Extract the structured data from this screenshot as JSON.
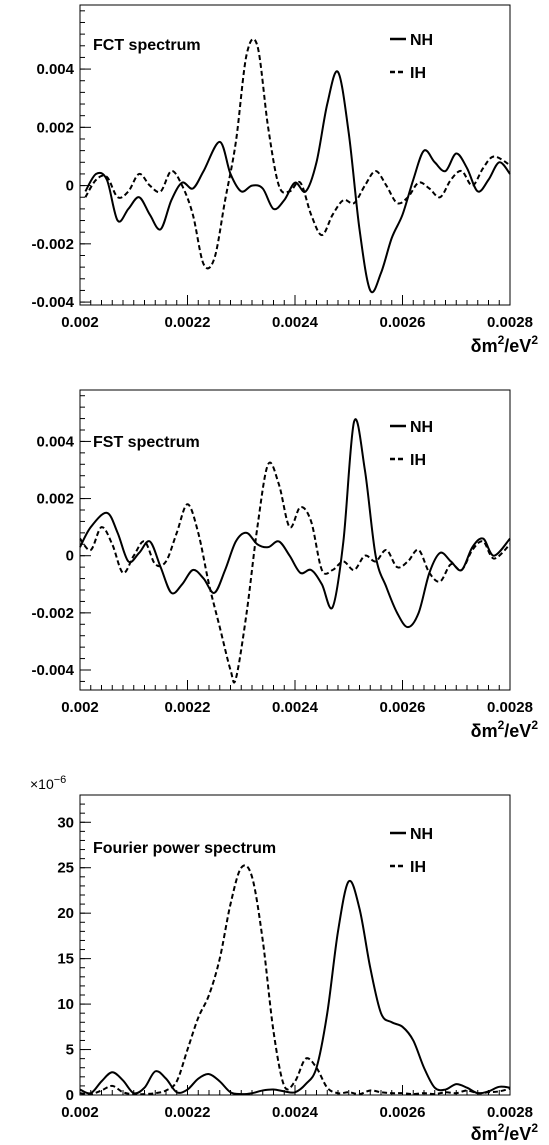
{
  "chart_data": [
    {
      "type": "line",
      "title": "FCT spectrum",
      "xlabel_base": "δm",
      "xlabel_sup1": "2",
      "xlabel_mid": "/eV",
      "xlabel_sup2": "2",
      "xlim": [
        0.002,
        0.0028
      ],
      "ylim": [
        -0.0041,
        0.0062
      ],
      "xticks": [
        "0.002",
        "0.0022",
        "0.0024",
        "0.0026",
        "0.0028"
      ],
      "yticks": [
        "-0.004",
        "-0.002",
        "0",
        "0.002",
        "0.004"
      ],
      "legend": {
        "placement": "top-right",
        "entries": [
          {
            "label": "NH",
            "style": "solid"
          },
          {
            "label": "IH",
            "style": "dashed"
          }
        ]
      },
      "series": [
        {
          "name": "NH",
          "style": "solid",
          "x": [
            0.00201,
            0.00203,
            0.00205,
            0.00207,
            0.00209,
            0.00211,
            0.00213,
            0.00215,
            0.00217,
            0.00219,
            0.00221,
            0.00223,
            0.00226,
            0.00228,
            0.0023,
            0.00232,
            0.00234,
            0.00236,
            0.00238,
            0.0024,
            0.00242,
            0.00244,
            0.00246,
            0.00248,
            0.0025,
            0.00252,
            0.00254,
            0.00256,
            0.00258,
            0.0026,
            0.00262,
            0.00264,
            0.00266,
            0.00268,
            0.0027,
            0.00272,
            0.00274,
            0.00276,
            0.00278,
            0.0028
          ],
          "y": [
            -0.0002,
            0.0004,
            0.0002,
            -0.0012,
            -0.0008,
            -0.0004,
            -0.001,
            -0.0015,
            -0.0005,
            0.0001,
            -0.0001,
            0.0005,
            0.0015,
            0.0004,
            -0.0002,
            0.0,
            -0.0001,
            -0.0008,
            -0.0005,
            0.0001,
            -0.0002,
            0.0008,
            0.0028,
            0.0039,
            0.0018,
            -0.0015,
            -0.0036,
            -0.003,
            -0.0018,
            -0.001,
            0.0002,
            0.0012,
            0.0008,
            0.0005,
            0.0011,
            0.0006,
            -0.0002,
            0.0002,
            0.0008,
            0.0004
          ]
        },
        {
          "name": "IH",
          "style": "dashed",
          "x": [
            0.00201,
            0.00203,
            0.00205,
            0.00207,
            0.00209,
            0.00211,
            0.00213,
            0.00215,
            0.00217,
            0.00219,
            0.00221,
            0.00223,
            0.00225,
            0.00227,
            0.00229,
            0.00231,
            0.00233,
            0.00235,
            0.00237,
            0.00239,
            0.00241,
            0.00243,
            0.00245,
            0.00247,
            0.00249,
            0.00251,
            0.00253,
            0.00255,
            0.00257,
            0.00259,
            0.00261,
            0.00263,
            0.00265,
            0.00267,
            0.00269,
            0.00271,
            0.00273,
            0.00275,
            0.00277,
            0.0028
          ],
          "y": [
            -0.0004,
            0.0002,
            0.0003,
            -0.0004,
            -0.0002,
            0.0004,
            0.0,
            -0.0002,
            0.0005,
            0.0,
            -0.001,
            -0.0027,
            -0.0025,
            -0.0005,
            0.0015,
            0.0045,
            0.0048,
            0.002,
            0.0,
            -0.0002,
            0.0001,
            -0.001,
            -0.0017,
            -0.001,
            -0.0005,
            -0.0006,
            0.0,
            0.0005,
            0.0,
            -0.0006,
            -0.0004,
            0.0001,
            -0.0001,
            -0.0004,
            0.0002,
            0.0005,
            0.0,
            0.0006,
            0.001,
            0.0007
          ]
        }
      ]
    },
    {
      "type": "line",
      "title": "FST spectrum",
      "xlabel_base": "δm",
      "xlabel_sup1": "2",
      "xlabel_mid": "/eV",
      "xlabel_sup2": "2",
      "xlim": [
        0.002,
        0.0028
      ],
      "ylim": [
        -0.0047,
        0.0058
      ],
      "xticks": [
        "0.002",
        "0.0022",
        "0.0024",
        "0.0026",
        "0.0028"
      ],
      "yticks": [
        "-0.004",
        "-0.002",
        "0",
        "0.002",
        "0.004"
      ],
      "legend": {
        "placement": "top-right",
        "entries": [
          {
            "label": "NH",
            "style": "solid"
          },
          {
            "label": "IH",
            "style": "dashed"
          }
        ]
      },
      "series": [
        {
          "name": "NH",
          "style": "solid",
          "x": [
            0.002,
            0.00202,
            0.00205,
            0.00207,
            0.00209,
            0.00211,
            0.00213,
            0.00215,
            0.00217,
            0.00219,
            0.00221,
            0.00223,
            0.00225,
            0.00227,
            0.00229,
            0.00231,
            0.00233,
            0.00235,
            0.00237,
            0.00239,
            0.00241,
            0.00243,
            0.00245,
            0.00247,
            0.00249,
            0.00251,
            0.00253,
            0.00255,
            0.00257,
            0.00259,
            0.00261,
            0.00263,
            0.00265,
            0.00267,
            0.00269,
            0.00271,
            0.00273,
            0.00275,
            0.00277,
            0.0028
          ],
          "y": [
            0.0003,
            0.001,
            0.0015,
            0.0008,
            -0.0002,
            0.0001,
            0.0005,
            -0.0004,
            -0.0013,
            -0.001,
            -0.0005,
            -0.0008,
            -0.0013,
            -0.0005,
            0.0005,
            0.0008,
            0.0004,
            0.0003,
            0.0005,
            0.0,
            -0.0006,
            -0.0005,
            -0.001,
            -0.0018,
            0.0005,
            0.0047,
            0.003,
            0.0,
            -0.0011,
            -0.002,
            -0.0025,
            -0.002,
            -0.0006,
            0.0001,
            -0.0002,
            -0.0005,
            0.0003,
            0.0006,
            0.0,
            0.0006
          ]
        },
        {
          "name": "IH",
          "style": "dashed",
          "x": [
            0.002,
            0.00202,
            0.00204,
            0.00206,
            0.00208,
            0.0021,
            0.00212,
            0.00214,
            0.00216,
            0.00218,
            0.0022,
            0.00222,
            0.00224,
            0.00226,
            0.00228,
            0.00229,
            0.00231,
            0.00233,
            0.00235,
            0.00237,
            0.00239,
            0.00241,
            0.00243,
            0.00245,
            0.00247,
            0.00249,
            0.00251,
            0.00253,
            0.00255,
            0.00257,
            0.00259,
            0.00261,
            0.00263,
            0.00265,
            0.00267,
            0.00269,
            0.00271,
            0.00273,
            0.00275,
            0.00277,
            0.0028
          ],
          "y": [
            0.0006,
            0.0002,
            0.001,
            0.0004,
            -0.0006,
            0.0,
            0.0005,
            -0.0003,
            -0.0002,
            0.0008,
            0.0018,
            0.0008,
            -0.001,
            -0.0025,
            -0.004,
            -0.0043,
            -0.002,
            0.001,
            0.0032,
            0.0025,
            0.001,
            0.0017,
            0.0012,
            -0.0005,
            -0.0005,
            -0.0002,
            -0.0005,
            0.0,
            -0.0002,
            0.0002,
            -0.0004,
            -0.0002,
            0.0002,
            -0.0006,
            -0.0009,
            -0.0003,
            -0.0005,
            0.0002,
            0.0005,
            -0.0001,
            0.0004
          ]
        }
      ]
    },
    {
      "type": "line",
      "title": "Fourier power spectrum",
      "scale_label": "×10",
      "scale_exp": "−6",
      "xlabel_base": "δm",
      "xlabel_sup1": "2",
      "xlabel_mid": "/eV",
      "xlabel_sup2": "2",
      "xlim": [
        0.002,
        0.0028
      ],
      "ylim": [
        0,
        33
      ],
      "xticks": [
        "0.002",
        "0.0022",
        "0.0024",
        "0.0026",
        "0.0028"
      ],
      "yticks": [
        "0",
        "5",
        "10",
        "15",
        "20",
        "25",
        "30"
      ],
      "legend": {
        "placement": "top-right",
        "entries": [
          {
            "label": "NH",
            "style": "solid"
          },
          {
            "label": "IH",
            "style": "dashed"
          }
        ]
      },
      "series": [
        {
          "name": "NH",
          "style": "solid",
          "x": [
            0.002,
            0.00202,
            0.00204,
            0.00206,
            0.00208,
            0.0021,
            0.00212,
            0.00214,
            0.00216,
            0.00218,
            0.0022,
            0.00222,
            0.00224,
            0.00226,
            0.00228,
            0.0023,
            0.00232,
            0.00234,
            0.00236,
            0.00238,
            0.0024,
            0.00242,
            0.00244,
            0.00246,
            0.00248,
            0.0025,
            0.00252,
            0.00254,
            0.00256,
            0.00258,
            0.0026,
            0.00262,
            0.00264,
            0.00266,
            0.00268,
            0.0027,
            0.00272,
            0.00274,
            0.00276,
            0.00278,
            0.0028
          ],
          "y": [
            0.6,
            0.2,
            1.5,
            2.5,
            1.6,
            0.2,
            0.8,
            2.6,
            1.8,
            0.3,
            0.6,
            1.8,
            2.3,
            1.5,
            0.3,
            0.1,
            0.2,
            0.5,
            0.6,
            0.4,
            0.3,
            1.2,
            3.0,
            9.0,
            18.0,
            23.5,
            20.5,
            14.0,
            9.0,
            8.0,
            7.5,
            6.0,
            3.0,
            0.8,
            0.6,
            1.2,
            0.8,
            0.2,
            0.4,
            0.9,
            0.8
          ]
        },
        {
          "name": "IH",
          "style": "dashed",
          "x": [
            0.002,
            0.00202,
            0.00204,
            0.00206,
            0.00208,
            0.0021,
            0.00212,
            0.00214,
            0.00216,
            0.00218,
            0.0022,
            0.00222,
            0.00224,
            0.00226,
            0.00228,
            0.0023,
            0.00232,
            0.00234,
            0.00236,
            0.00238,
            0.0024,
            0.00242,
            0.00244,
            0.00246,
            0.00248,
            0.0025,
            0.00252,
            0.00254,
            0.00256,
            0.00258,
            0.0026,
            0.00262,
            0.00264,
            0.00266,
            0.00268,
            0.0027,
            0.00272,
            0.00274,
            0.00276,
            0.00278,
            0.0028
          ],
          "y": [
            0.2,
            0.1,
            0.5,
            1.0,
            0.3,
            0.1,
            0.1,
            0.2,
            0.5,
            1.5,
            5.0,
            8.5,
            11.0,
            15.0,
            21.0,
            25.0,
            24.0,
            17.0,
            7.0,
            1.0,
            1.5,
            4.0,
            3.0,
            0.8,
            0.2,
            0.3,
            0.1,
            0.5,
            0.3,
            0.2,
            0.2,
            0.1,
            0.2,
            0.1,
            0.3,
            0.2,
            0.5,
            0.2,
            0.3,
            0.4,
            0.7
          ]
        }
      ]
    }
  ]
}
